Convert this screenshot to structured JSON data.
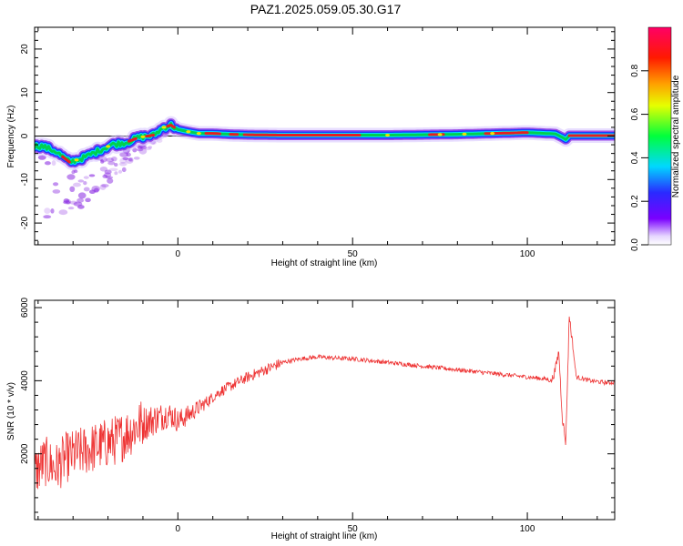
{
  "title": "PAZ1.2025.059.05.30.G17",
  "charts": [
    {
      "type": "heatmap",
      "xlabel": "Height of straight line (km)",
      "ylabel": "Frequency (Hz)",
      "xlim": [
        -41,
        125
      ],
      "ylim": [
        -25,
        25
      ],
      "xticks": [
        0,
        50,
        100
      ],
      "yticks": [
        -20,
        -10,
        0,
        10,
        20
      ],
      "ridge": {
        "x": [
          -39,
          -35,
          -31,
          -27,
          -23,
          -19,
          -15,
          -11,
          -7,
          -4,
          -2,
          0,
          3,
          6,
          10,
          15,
          20,
          30,
          40,
          50,
          60,
          70,
          80,
          90,
          100,
          108,
          110,
          111,
          112,
          125
        ],
        "y": [
          -2.3,
          -3.5,
          -6,
          -5,
          -3.5,
          -2,
          -1.5,
          -0.3,
          0.2,
          2.0,
          2.5,
          1.5,
          1.0,
          0.6,
          0.6,
          0.4,
          0.3,
          0.2,
          0.2,
          0.2,
          0.2,
          0.3,
          0.4,
          0.6,
          0.8,
          0.5,
          -0.3,
          -0.8,
          0.1,
          0.1
        ]
      },
      "colorbar": {
        "label": "Normalized spectral amplitude",
        "range": [
          0,
          1
        ],
        "ticks": [
          "0.0",
          "0.2",
          "0.4",
          "0.6",
          "0.8"
        ]
      }
    },
    {
      "type": "line",
      "xlabel": "Height of straight line (km)",
      "ylabel": "SNR (10 * v/v)",
      "xlim": [
        -41,
        125
      ],
      "ylim": [
        200,
        6200
      ],
      "xticks": [
        0,
        50,
        100
      ],
      "yticks": [
        2000,
        4000,
        6000
      ],
      "color": "#ee3333",
      "series": [
        {
          "x": [
            -41,
            -38,
            -35,
            -32,
            -29,
            -26,
            -23,
            -20,
            -17,
            -14,
            -11,
            -8,
            -5,
            -3,
            -1,
            0,
            2,
            5,
            8,
            12,
            16,
            20,
            25,
            30,
            35,
            40,
            45,
            50,
            55,
            60,
            65,
            70,
            75,
            80,
            85,
            90,
            95,
            100,
            105,
            107,
            108,
            109,
            110,
            111,
            112,
            114,
            118,
            122,
            125
          ],
          "y": [
            1500,
            1800,
            1600,
            1900,
            2000,
            2100,
            2200,
            2300,
            2400,
            2600,
            2800,
            2900,
            3000,
            3100,
            3000,
            2900,
            3000,
            3200,
            3400,
            3700,
            3900,
            4100,
            4300,
            4500,
            4600,
            4650,
            4620,
            4600,
            4550,
            4500,
            4450,
            4400,
            4350,
            4300,
            4250,
            4200,
            4150,
            4100,
            4050,
            4000,
            4300,
            4800,
            3000,
            2300,
            5800,
            4100,
            4000,
            3950,
            3950
          ]
        }
      ]
    }
  ]
}
